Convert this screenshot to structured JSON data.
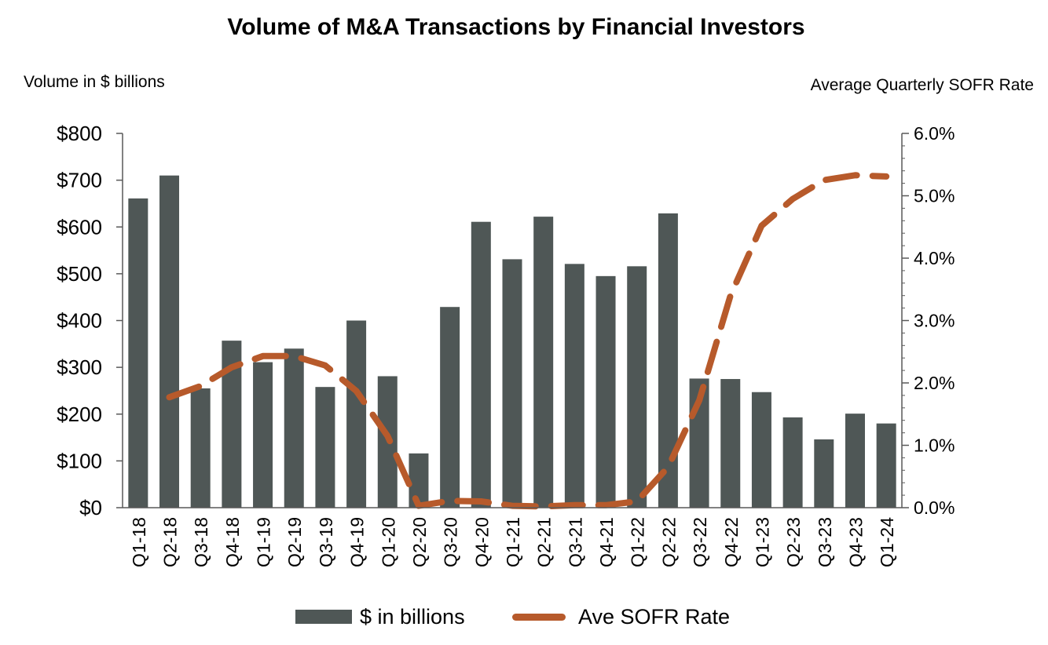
{
  "chart_data": {
    "type": "bar",
    "title": "Volume of M&A Transactions by Financial Investors",
    "ylabel": "Volume in $ billions",
    "y2label": "Average Quarterly SOFR Rate",
    "categories": [
      "Q1-18",
      "Q2-18",
      "Q3-18",
      "Q4-18",
      "Q1-19",
      "Q2-19",
      "Q3-19",
      "Q4-19",
      "Q1-20",
      "Q2-20",
      "Q3-20",
      "Q4-20",
      "Q1-21",
      "Q2-21",
      "Q3-21",
      "Q4-21",
      "Q1-22",
      "Q2-22",
      "Q3-22",
      "Q4-22",
      "Q1-23",
      "Q2-23",
      "Q3-23",
      "Q4-23",
      "Q1-24"
    ],
    "series": [
      {
        "name": "$ in billions",
        "type": "bar",
        "axis": "left",
        "color": "#4f5756",
        "values": [
          661,
          710,
          255,
          357,
          311,
          340,
          258,
          400,
          281,
          116,
          429,
          611,
          531,
          622,
          521,
          495,
          516,
          629,
          276,
          275,
          247,
          193,
          146,
          201,
          180
        ]
      },
      {
        "name": "Ave SOFR Rate",
        "type": "line",
        "style": "dashed",
        "axis": "right",
        "color": "#b75a2b",
        "values": [
          null,
          1.77,
          1.95,
          2.25,
          2.43,
          2.43,
          2.28,
          1.87,
          1.15,
          0.03,
          0.11,
          0.1,
          0.03,
          0.02,
          0.04,
          0.04,
          0.1,
          0.65,
          1.72,
          3.4,
          4.52,
          4.95,
          5.25,
          5.33,
          5.31
        ]
      }
    ],
    "y_left": {
      "min": 0,
      "max": 800,
      "ticks": [
        "$0",
        "$100",
        "$200",
        "$300",
        "$400",
        "$500",
        "$600",
        "$700",
        "$800"
      ]
    },
    "y_right": {
      "min": 0,
      "max": 6,
      "ticks": [
        "0.0%",
        "1.0%",
        "2.0%",
        "3.0%",
        "4.0%",
        "5.0%",
        "6.0%"
      ]
    },
    "grid": false,
    "legend": "bottom-center"
  }
}
